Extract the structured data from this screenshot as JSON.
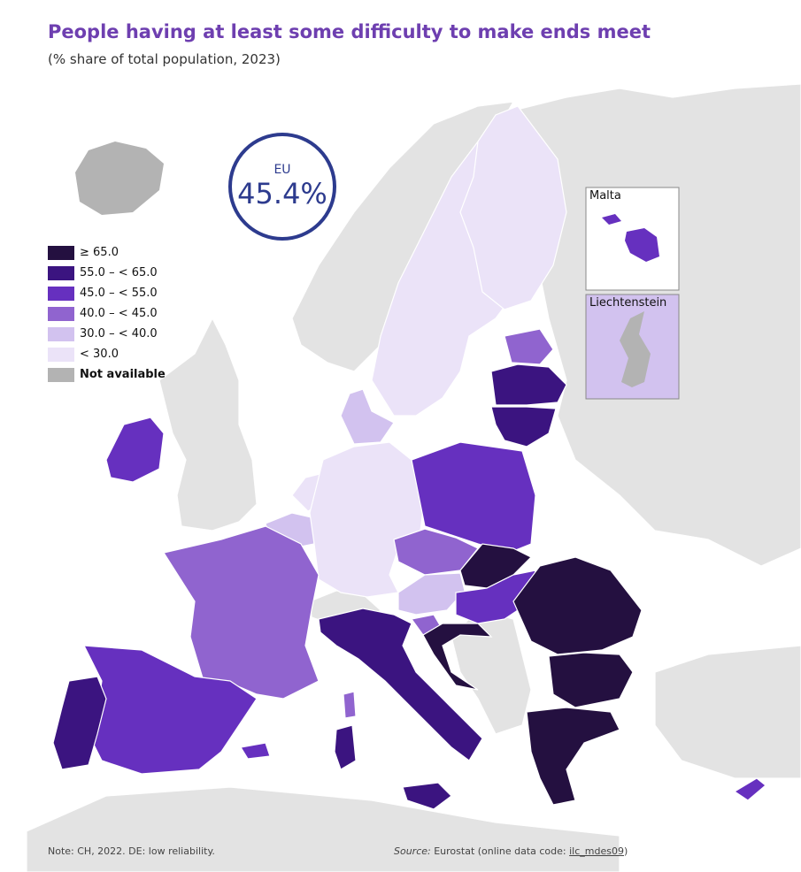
{
  "title": "People having at least some difficulty to make ends meet",
  "subtitle": "(% share of total population, 2023)",
  "eu_badge": {
    "label": "EU",
    "value": "45.4%"
  },
  "legend": [
    {
      "label": "≥ 65.0",
      "color": "#241040"
    },
    {
      "label": "55.0 – < 65.0",
      "color": "#3b1480"
    },
    {
      "label": "45.0 – < 55.0",
      "color": "#6630bf"
    },
    {
      "label": "40.0 – < 45.0",
      "color": "#9064cf"
    },
    {
      "label": "30.0 – < 40.0",
      "color": "#d2c2ef"
    },
    {
      "label": "< 30.0",
      "color": "#ebe3f8"
    },
    {
      "label": "Not available",
      "color": "#b3b3b3"
    }
  ],
  "insets": {
    "malta": "Malta",
    "liechtenstein": "Liechtenstein"
  },
  "note": "Note: CH, 2022. DE: low reliability.",
  "source": {
    "label": "Source:",
    "text": "Eurostat (online data code: ",
    "code": "ilc_mdes09",
    "close": ")"
  },
  "colors": {
    "sea": "#ffffff",
    "non_covered": "#e3e3e3",
    "border": "#ffffff",
    "accent": "#6e3fb0",
    "badge": "#2d3b8e"
  }
}
